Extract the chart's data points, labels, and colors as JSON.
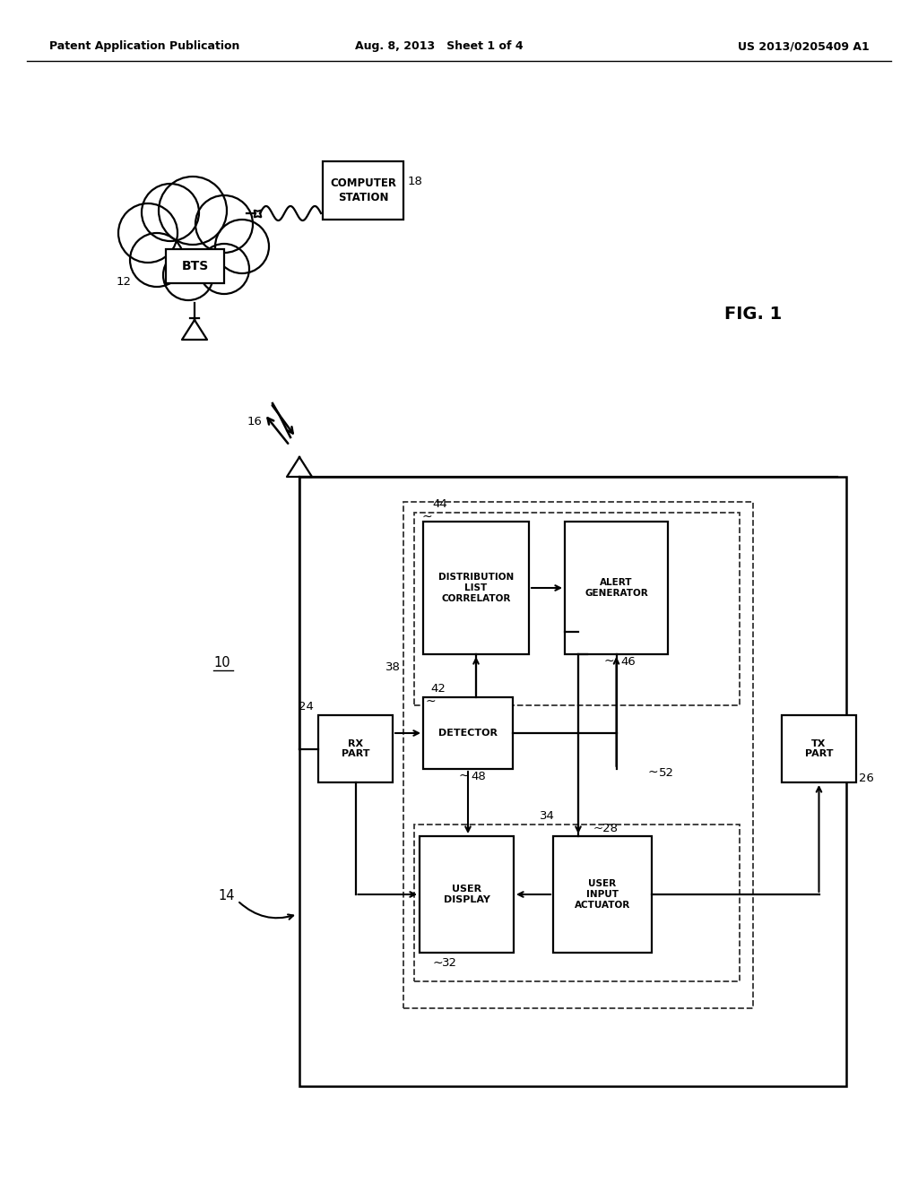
{
  "header_left": "Patent Application Publication",
  "header_center": "Aug. 8, 2013   Sheet 1 of 4",
  "header_right": "US 2013/0205409 A1",
  "fig_label": "FIG. 1",
  "bg": "#ffffff",
  "lc": "#000000"
}
